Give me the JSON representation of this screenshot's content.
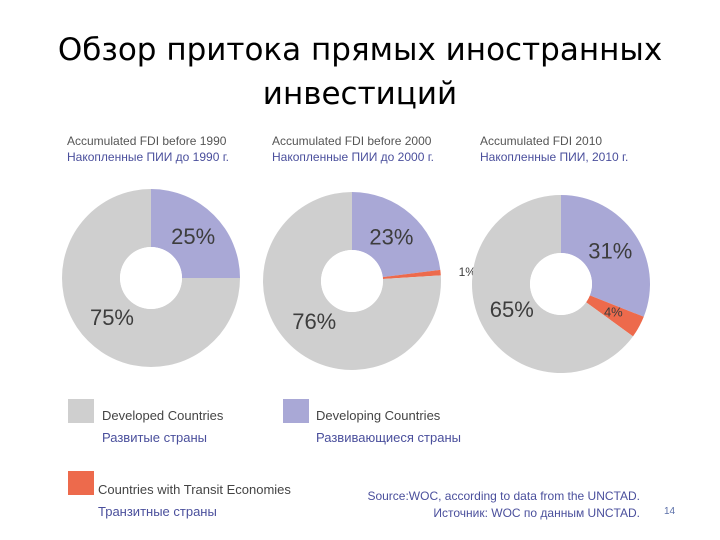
{
  "slide": {
    "title_line1": "Обзор притока прямых иностранных",
    "title_line2": "инвестиций",
    "page_number": "14"
  },
  "colors": {
    "developed": "#cfcfcf",
    "developing": "#a9a8d6",
    "transit": "#ed6a4c",
    "label_text": "#3d3d3d"
  },
  "chart_data": [
    {
      "type": "pie",
      "donut": true,
      "title_en": "Accumulated FDI before 1990",
      "title_ru": "Накопленные ПИИ до 1990 г.",
      "slices": [
        {
          "name": "Developing Countries",
          "value": 25,
          "label": "25%"
        },
        {
          "name": "Developed Countries",
          "value": 75,
          "label": "75%"
        }
      ]
    },
    {
      "type": "pie",
      "donut": true,
      "title_en": "Accumulated FDI before 2000",
      "title_ru": "Накопленные ПИИ до 2000 г.",
      "slices": [
        {
          "name": "Developing Countries",
          "value": 23,
          "label": "23%"
        },
        {
          "name": "Countries with Transit Economies",
          "value": 1,
          "label": "1%"
        },
        {
          "name": "Developed Countries",
          "value": 76,
          "label": "76%"
        }
      ]
    },
    {
      "type": "pie",
      "donut": true,
      "title_en": "Accumulated FDI 2010",
      "title_ru": "Накопленные ПИИ, 2010 г.",
      "slices": [
        {
          "name": "Developing Countries",
          "value": 31,
          "label": "31%"
        },
        {
          "name": "Countries with Transit Economies",
          "value": 4,
          "label": "4%"
        },
        {
          "name": "Developed Countries",
          "value": 65,
          "label": "65%"
        }
      ]
    }
  ],
  "legend": {
    "developed_en": "Developed Countries",
    "developed_ru": "Развитые страны",
    "developing_en": "Developing Countries",
    "developing_ru": "Развивающиеся страны",
    "transit_en": "Countries with Transit Economies",
    "transit_ru": "Транзитные страны"
  },
  "source": {
    "en": "Source:WOC, according to data from the UNCTAD.",
    "ru": "Источник: WOC по данным UNCTAD."
  }
}
